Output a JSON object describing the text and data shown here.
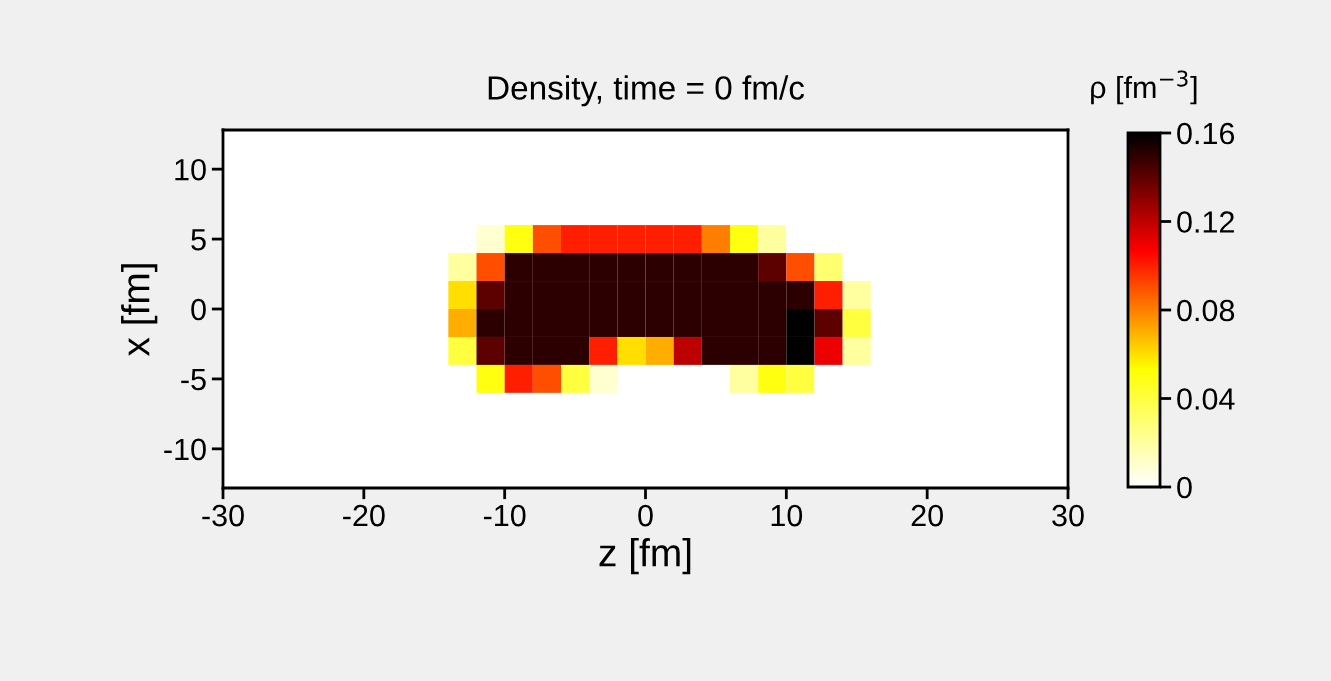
{
  "chart_data": {
    "type": "heatmap",
    "title": "Density, time = 0 fm/c",
    "xlabel": "z [fm]",
    "ylabel": "x [fm]",
    "clabel": "ρ [fm$^{−3}$]",
    "x": [
      -15,
      -13,
      -11,
      -9,
      -7,
      -5,
      -3,
      -1,
      1,
      3,
      5,
      7,
      9,
      11,
      13,
      15,
      17
    ],
    "y": [
      7,
      5,
      3,
      1,
      -1,
      -3,
      -5,
      -7
    ],
    "cells": [
      [
        0,
        0,
        0,
        0,
        0,
        0,
        0,
        0,
        0,
        0,
        0,
        0,
        0,
        0,
        0,
        0,
        0
      ],
      [
        0,
        0,
        0.01,
        0.05,
        0.09,
        0.1,
        0.1,
        0.1,
        0.1,
        0.1,
        0.08,
        0.05,
        0.02,
        0,
        0,
        0,
        0
      ],
      [
        0,
        0.02,
        0.09,
        0.15,
        0.15,
        0.15,
        0.15,
        0.15,
        0.15,
        0.15,
        0.15,
        0.15,
        0.14,
        0.09,
        0.03,
        0,
        0
      ],
      [
        0,
        0.06,
        0.14,
        0.15,
        0.15,
        0.15,
        0.15,
        0.15,
        0.15,
        0.15,
        0.15,
        0.15,
        0.15,
        0.15,
        0.1,
        0.02,
        0
      ],
      [
        0,
        0.07,
        0.15,
        0.15,
        0.15,
        0.15,
        0.15,
        0.15,
        0.15,
        0.15,
        0.15,
        0.15,
        0.15,
        0.16,
        0.14,
        0.04,
        0
      ],
      [
        0,
        0.04,
        0.14,
        0.15,
        0.15,
        0.15,
        0.1,
        0.06,
        0.07,
        0.12,
        0.15,
        0.15,
        0.15,
        0.16,
        0.11,
        0.02,
        0
      ],
      [
        0,
        0,
        0.05,
        0.1,
        0.09,
        0.04,
        0.01,
        0,
        0,
        0,
        0,
        0.02,
        0.05,
        0.04,
        0,
        0,
        0
      ],
      [
        0,
        0,
        0,
        0,
        0,
        0,
        0,
        0,
        0,
        0,
        0,
        0,
        0,
        0,
        0,
        0,
        0
      ]
    ],
    "colors": [
      "#ffffff",
      "#ffff00",
      "#ff0000",
      "#000000"
    ],
    "clim": [
      0,
      0.16
    ],
    "cticks": [
      0,
      0.04,
      0.08,
      0.12,
      0.16
    ],
    "xlim": [
      -30,
      30
    ],
    "ylim": [
      -12.8,
      12.8
    ],
    "xticks": [
      -30,
      -20,
      -10,
      0,
      10,
      20,
      30
    ],
    "yticks": [
      -10,
      -5,
      0,
      5,
      10
    ]
  }
}
